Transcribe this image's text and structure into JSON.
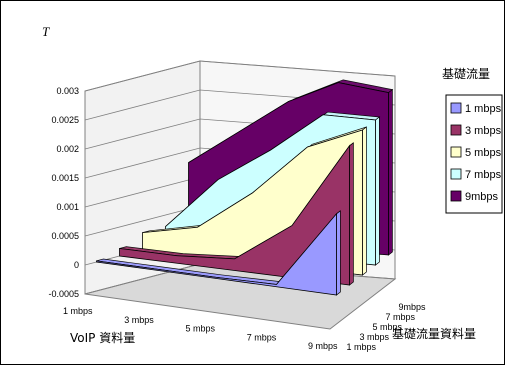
{
  "chart_data": {
    "type": "area",
    "title": "",
    "zlabel": "T",
    "xlabel": "VoIP 資料量",
    "ylabel": "基礎流量資料量",
    "legend_title": "基礎流量",
    "legend_position": "right",
    "x_categories": [
      "1 mbps",
      "3 mbps",
      "5 mbps",
      "7 mbps",
      "9 mbps"
    ],
    "y_categories": [
      "1 mbps",
      "3 mbps",
      "5 mbps",
      "7 mbps",
      "9mbps"
    ],
    "z_ticks": [
      "-0.0005",
      "0",
      "0.0005",
      "0.001",
      "0.0015",
      "0.002",
      "0.0025",
      "0.003"
    ],
    "zlim": [
      -0.0005,
      0.003
    ],
    "grid": true,
    "series": [
      {
        "name": "1 mbps",
        "color": "#9999ff",
        "values": [
          2e-05,
          2e-05,
          2e-05,
          4e-05,
          0.0014
        ]
      },
      {
        "name": "3 mbps",
        "color": "#993366",
        "values": [
          0.00013,
          0.00013,
          0.0002,
          0.0009,
          0.0024
        ]
      },
      {
        "name": "5 mbps",
        "color": "#ffffcc",
        "values": [
          0.0003,
          0.0005,
          0.0012,
          0.0021,
          0.0025
        ]
      },
      {
        "name": "7 mbps",
        "color": "#ccffff",
        "values": [
          0.0003,
          0.0012,
          0.0018,
          0.0025,
          0.0025
        ]
      },
      {
        "name": "9mbps",
        "color": "#660066",
        "values": [
          0.0013,
          0.0019,
          0.0025,
          0.0029,
          0.0028
        ]
      }
    ]
  }
}
